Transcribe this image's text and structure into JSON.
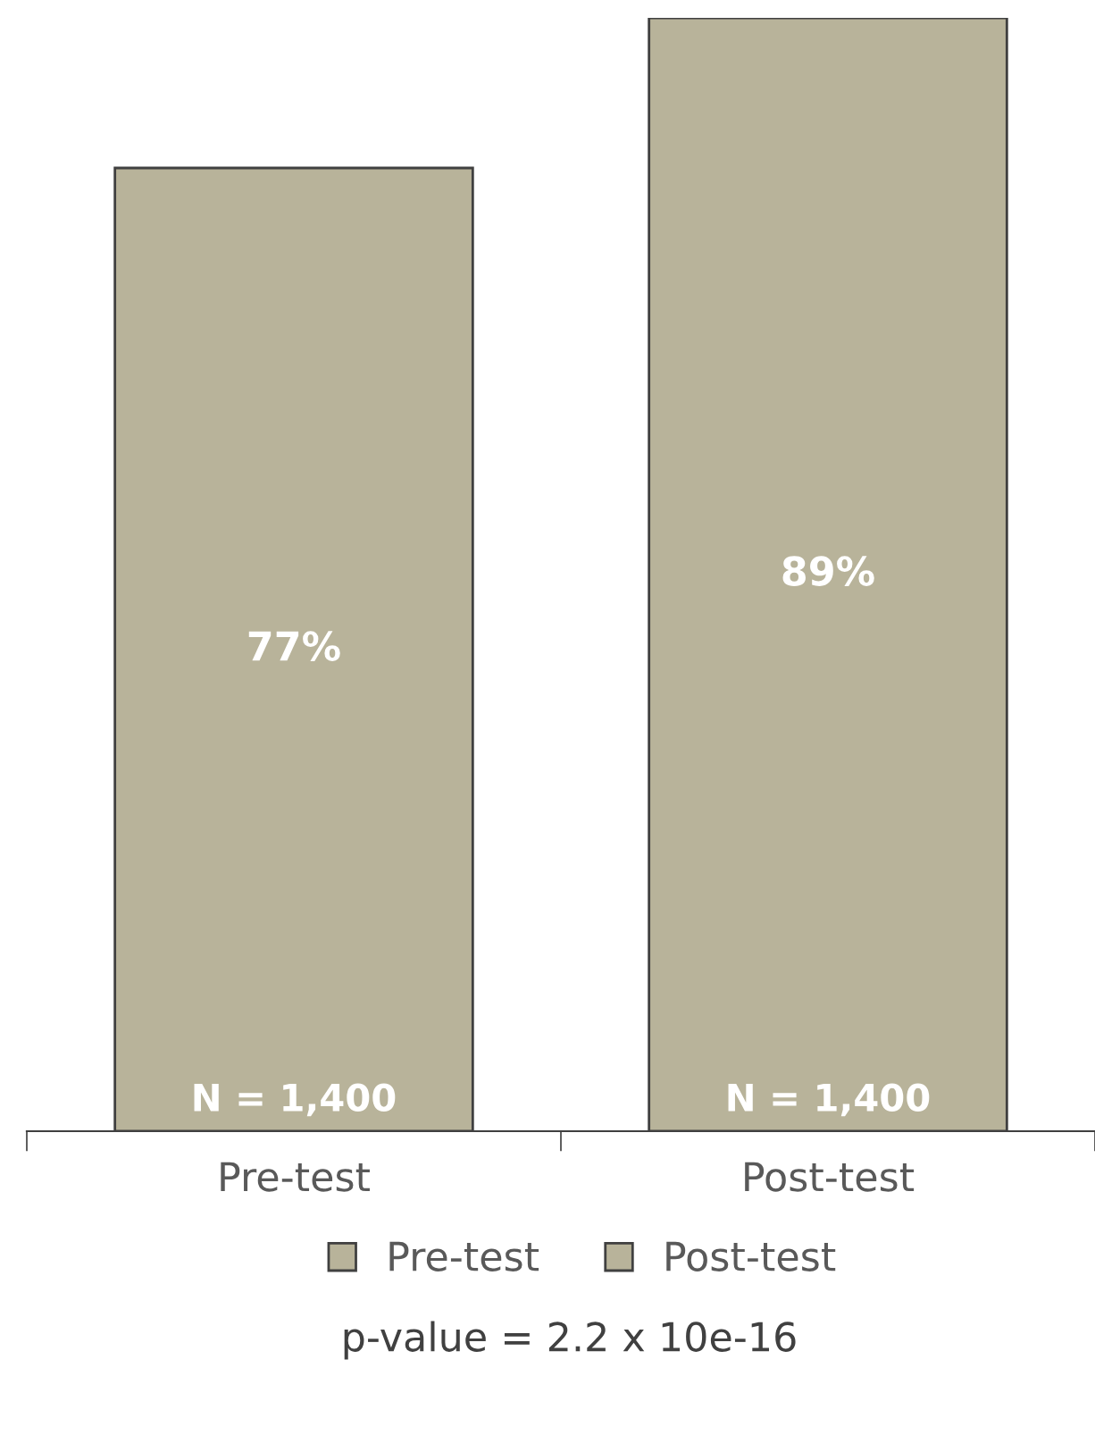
{
  "chart_data": {
    "type": "bar",
    "categories": [
      "Pre-test",
      "Post-test"
    ],
    "series": [
      {
        "name": "Pre-test",
        "color": "#b8b39a",
        "values": [
          77,
          null
        ],
        "value_labels": [
          "77%",
          null
        ]
      },
      {
        "name": "Post-test",
        "color": "#b8b39a",
        "values": [
          null,
          89
        ],
        "value_labels": [
          null,
          "89%"
        ]
      }
    ],
    "annotations": [
      {
        "text": "N = 1,400",
        "x": "Pre-test",
        "y": 0
      },
      {
        "text": "N = 1,400",
        "x": "Post-test",
        "y": 0
      },
      "p-value = 2.2 x 10e-16"
    ],
    "legend": "bottom",
    "grid": false
  }
}
